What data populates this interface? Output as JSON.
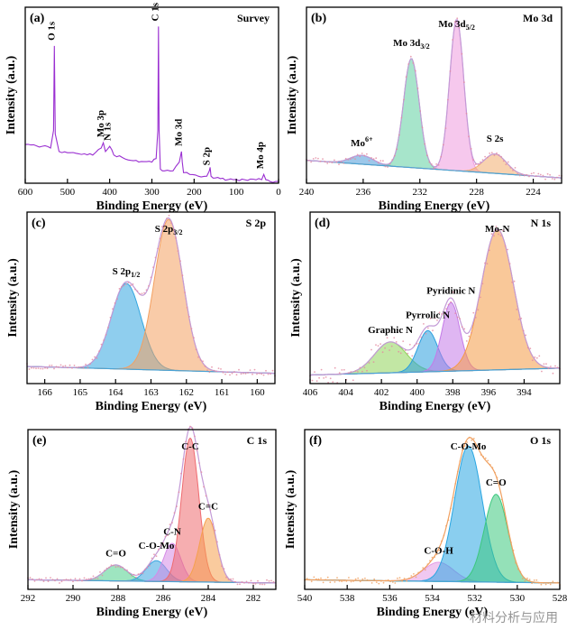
{
  "watermark": "材料分析与应用",
  "colors": {
    "axis": "#000000",
    "survey": "#9a2fd1",
    "raw": "#e38aa0",
    "fit": "#c39ad6",
    "bg": "#4aa3d6"
  },
  "chart_data": [
    {
      "type": "line",
      "panel": "(a)",
      "title": "Survey",
      "xlabel": "Binding Energy (eV)",
      "ylabel": "Intensity (a.u.)",
      "xlim": [
        600,
        0
      ],
      "xticks": [
        600,
        500,
        400,
        300,
        200,
        100,
        0
      ],
      "series": [
        {
          "name": "Survey",
          "x": [
            600,
            560,
            540,
            533,
            531,
            529,
            520,
            480,
            440,
            420,
            415,
            410,
            400,
            395,
            390,
            350,
            300,
            290,
            286,
            284.5,
            283,
            280,
            270,
            250,
            235,
            230,
            228,
            225,
            210,
            190,
            170,
            164,
            162,
            160,
            150,
            120,
            80,
            40,
            35,
            30,
            20,
            0
          ],
          "y": [
            0.22,
            0.21,
            0.2,
            0.3,
            0.78,
            0.28,
            0.18,
            0.17,
            0.16,
            0.2,
            0.23,
            0.18,
            0.21,
            0.19,
            0.16,
            0.13,
            0.12,
            0.14,
            0.3,
            0.89,
            0.3,
            0.08,
            0.07,
            0.07,
            0.12,
            0.18,
            0.12,
            0.06,
            0.05,
            0.04,
            0.04,
            0.07,
            0.09,
            0.04,
            0.03,
            0.02,
            0.02,
            0.02,
            0.05,
            0.02,
            0.01,
            0.01
          ]
        }
      ],
      "annotations": [
        {
          "text": "O 1s",
          "x": 531
        },
        {
          "text": "N 1s",
          "x": 398
        },
        {
          "text": "Mo 3p",
          "x": 414
        },
        {
          "text": "C 1s",
          "x": 284.5
        },
        {
          "text": "Mo 3d",
          "x": 229
        },
        {
          "text": "S 2p",
          "x": 163
        },
        {
          "text": "Mo 4p",
          "x": 36
        }
      ]
    },
    {
      "type": "area",
      "panel": "(b)",
      "title": "Mo 3d",
      "xlabel": "Binding Energy (eV)",
      "ylabel": "Intensity (a.u.)",
      "xlim": [
        240,
        222
      ],
      "xticks": [
        240,
        236,
        232,
        228,
        224
      ],
      "background": [
        0.13,
        0.03
      ],
      "peaks": [
        {
          "label": "Mo6+",
          "center": 236.1,
          "height": 0.05,
          "width": 0.8,
          "color": "#4d9bd8"
        },
        {
          "label": "Mo 3d3/2",
          "center": 232.6,
          "height": 0.62,
          "width": 0.55,
          "color": "#5fd0a0"
        },
        {
          "label": "Mo 3d5/2",
          "center": 229.4,
          "height": 0.86,
          "width": 0.5,
          "color": "#ef9bdf"
        },
        {
          "label": "S 2s",
          "center": 226.7,
          "height": 0.11,
          "width": 0.8,
          "color": "#f3ad6e"
        }
      ]
    },
    {
      "type": "area",
      "panel": "(c)",
      "title": "S 2p",
      "xlabel": "Binding Energy (eV)",
      "ylabel": "Intensity (a.u.)",
      "xlim": [
        166.5,
        159.5
      ],
      "xticks": [
        166,
        165,
        164,
        163,
        162,
        161,
        160
      ],
      "background": [
        0.1,
        0.06
      ],
      "peaks": [
        {
          "label": "S 2p1/2",
          "center": 163.7,
          "height": 0.5,
          "width": 0.42,
          "color": "#33a6e0"
        },
        {
          "label": "S 2p3/2",
          "center": 162.5,
          "height": 0.88,
          "width": 0.4,
          "color": "#f4a060"
        }
      ]
    },
    {
      "type": "area",
      "panel": "(d)",
      "title": "N 1s",
      "xlabel": "Binding Energy (eV)",
      "ylabel": "Intensity (a.u.)",
      "xlim": [
        406,
        392
      ],
      "xticks": [
        406,
        404,
        402,
        400,
        398,
        396,
        394
      ],
      "background": [
        0.05,
        0.09
      ],
      "peaks": [
        {
          "label": "Graphic N",
          "center": 401.5,
          "height": 0.18,
          "width": 0.9,
          "color": "#8fd45a"
        },
        {
          "label": "Pyrrolic N",
          "center": 399.4,
          "height": 0.24,
          "width": 0.55,
          "color": "#2a9ede"
        },
        {
          "label": "Pyridinic N",
          "center": 398.1,
          "height": 0.4,
          "width": 0.5,
          "color": "#c47ae8"
        },
        {
          "label": "Mo-N",
          "center": 395.5,
          "height": 0.82,
          "width": 0.9,
          "color": "#f49a46"
        }
      ]
    },
    {
      "type": "area",
      "panel": "(e)",
      "title": "C 1s",
      "xlabel": "Binding Energy (eV)",
      "ylabel": "Intensity (a.u.)",
      "xlim": [
        292,
        281
      ],
      "xticks": [
        292,
        290,
        288,
        286,
        284,
        282
      ],
      "background": [
        0.06,
        0.04
      ],
      "peaks": [
        {
          "label": "C=O",
          "center": 288.1,
          "height": 0.1,
          "width": 0.5,
          "color": "#4fcf8c"
        },
        {
          "label": "C-O-Mo",
          "center": 286.3,
          "height": 0.13,
          "width": 0.45,
          "color": "#3aa4e0"
        },
        {
          "label": "C-N",
          "center": 285.6,
          "height": 0.24,
          "width": 0.38,
          "color": "#d58be6"
        },
        {
          "label": "C-C",
          "center": 284.8,
          "height": 0.9,
          "width": 0.38,
          "color": "#ef6b70"
        },
        {
          "label": "C=C",
          "center": 284.0,
          "height": 0.4,
          "width": 0.38,
          "color": "#f5a04e"
        }
      ]
    },
    {
      "type": "area",
      "panel": "(f)",
      "title": "O 1s",
      "xlabel": "Binding Energy (eV)",
      "ylabel": "Intensity (a.u.)",
      "xlim": [
        540,
        528
      ],
      "xticks": [
        540,
        538,
        536,
        534,
        532,
        530,
        528
      ],
      "background": [
        0.06,
        0.04
      ],
      "peaks": [
        {
          "label": "C-O-H",
          "center": 533.7,
          "height": 0.12,
          "width": 0.7,
          "color": "#e39be6"
        },
        {
          "label": "C-O-Mo",
          "center": 532.3,
          "height": 0.85,
          "width": 0.65,
          "color": "#29a6e2"
        },
        {
          "label": "C=O",
          "center": 531.0,
          "height": 0.55,
          "width": 0.55,
          "color": "#3cc87e"
        }
      ]
    }
  ]
}
